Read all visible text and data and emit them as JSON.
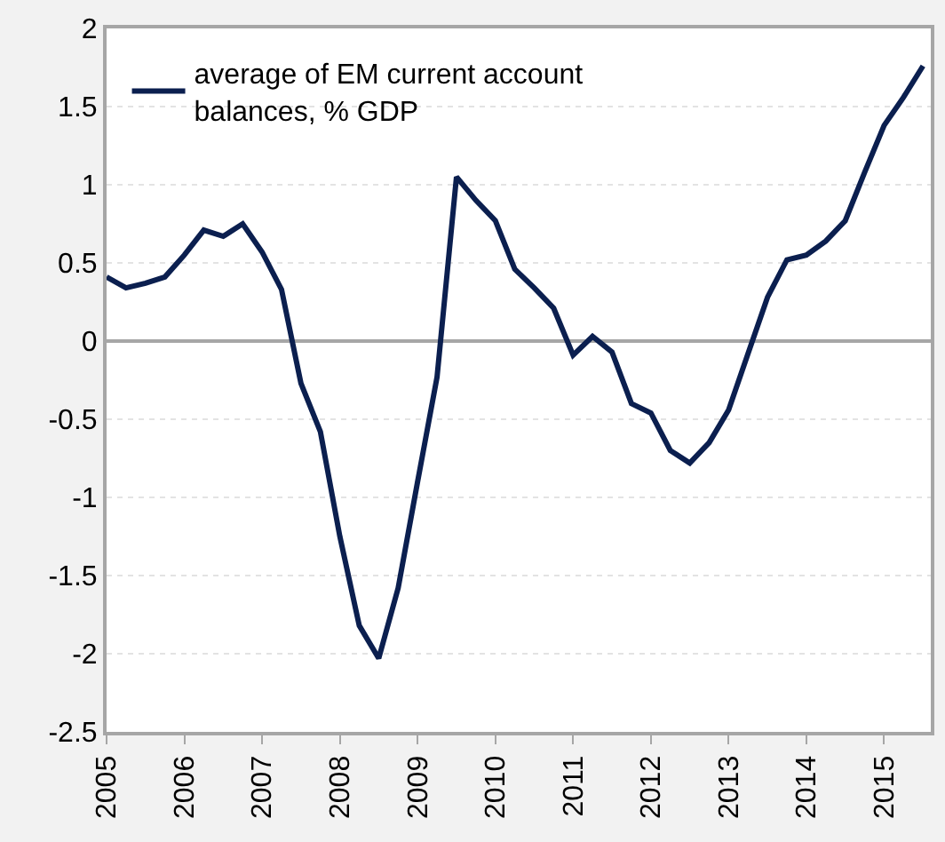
{
  "chart_data": {
    "type": "line",
    "x": [
      2005,
      2005.25,
      2005.5,
      2005.75,
      2006,
      2006.25,
      2006.5,
      2006.75,
      2007,
      2007.25,
      2007.5,
      2007.75,
      2008,
      2008.25,
      2008.5,
      2008.75,
      2009,
      2009.25,
      2009.5,
      2009.75,
      2010,
      2010.25,
      2010.5,
      2010.75,
      2011,
      2011.25,
      2011.5,
      2011.75,
      2012,
      2012.25,
      2012.5,
      2012.75,
      2013,
      2013.25,
      2013.5,
      2013.75,
      2014,
      2014.25,
      2014.5,
      2014.75,
      2015,
      2015.25,
      2015.5
    ],
    "series": [
      {
        "name": "average of EM current account balances, % GDP",
        "color": "#0b1f4f",
        "values": [
          0.41,
          0.34,
          0.37,
          0.41,
          0.55,
          0.71,
          0.67,
          0.75,
          0.57,
          0.33,
          -0.27,
          -0.58,
          -1.25,
          -1.82,
          -2.03,
          -1.58,
          -0.9,
          -0.23,
          1.05,
          0.9,
          0.77,
          0.46,
          0.34,
          0.21,
          -0.09,
          0.03,
          -0.07,
          -0.4,
          -0.46,
          -0.7,
          -0.78,
          -0.65,
          -0.44,
          -0.08,
          0.28,
          0.52,
          0.55,
          0.64,
          0.77,
          1.08,
          1.38,
          1.56,
          1.76
        ]
      }
    ],
    "xlim": [
      2005,
      2015.6
    ],
    "xticks": [
      2005,
      2006,
      2007,
      2008,
      2009,
      2010,
      2011,
      2012,
      2013,
      2014,
      2015
    ],
    "ylim": [
      -2.5,
      2
    ],
    "yticks": [
      -2.5,
      -2,
      -1.5,
      -1,
      -0.5,
      0,
      0.5,
      1,
      1.5,
      2
    ],
    "grid": "y",
    "legend": "top left",
    "marker": "none",
    "line_style": "solid"
  }
}
